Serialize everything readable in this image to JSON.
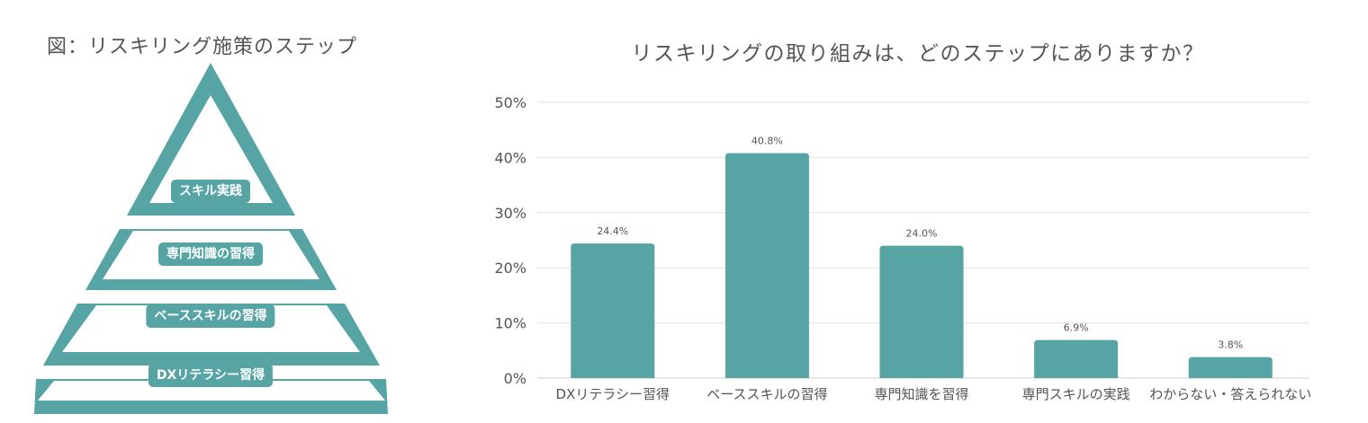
{
  "pyramid": {
    "title": "図：リスキリング施策のステップ",
    "steps": [
      "スキル実践",
      "専門知識の習得",
      "ベーススキルの習得",
      "DXリテラシー習得"
    ]
  },
  "colors": {
    "accent": "#57a4a5",
    "grid": "#e3e3e3",
    "text": "#555555"
  },
  "chart_data": {
    "type": "bar",
    "title": "リスキリングの取り組みは、どのステップにありますか？",
    "categories": [
      "DXリテラシー習得",
      "ベーススキルの習得",
      "専門知識を習得",
      "専門スキルの実践",
      "わからない・答えられない"
    ],
    "values": [
      24.4,
      40.8,
      24.0,
      6.9,
      3.8
    ],
    "value_labels": [
      "24.4%",
      "40.8%",
      "24.0%",
      "6.9%",
      "3.8%"
    ],
    "ylim": [
      0,
      50
    ],
    "yticks": [
      "0%",
      "10%",
      "20%",
      "30%",
      "40%",
      "50%"
    ],
    "grid": true,
    "xlabel": "",
    "ylabel": ""
  }
}
